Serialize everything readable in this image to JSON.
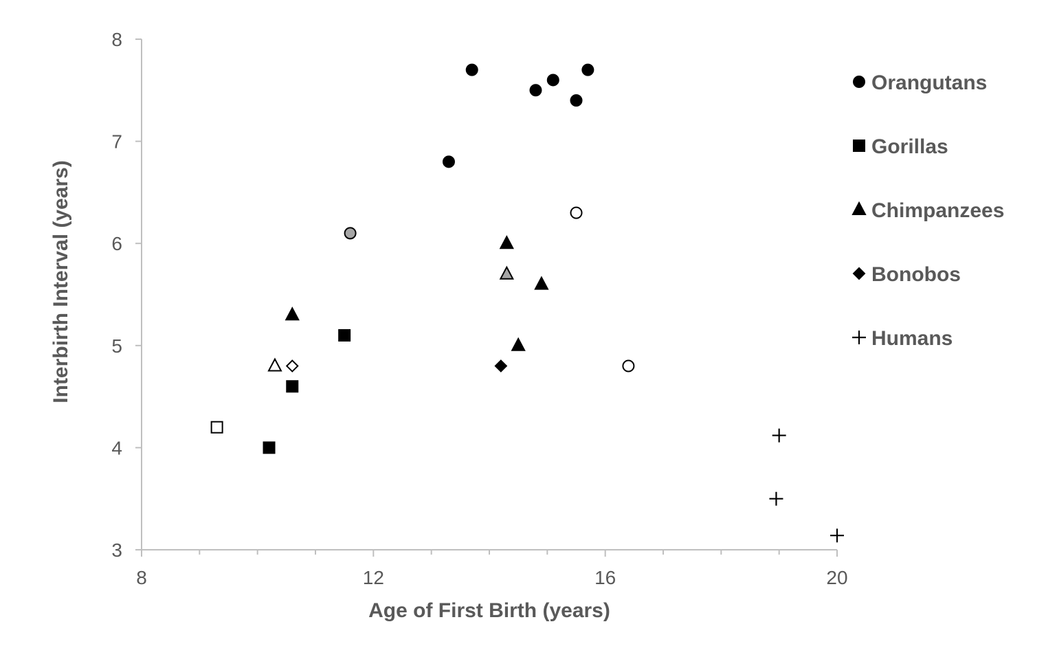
{
  "chart_data": {
    "type": "scatter",
    "title": "",
    "xlabel": "Age of First Birth (years)",
    "ylabel": "Interbirth Interval (years)",
    "xlim": [
      8,
      20
    ],
    "ylim": [
      3,
      8
    ],
    "xticks": [
      8,
      12,
      16,
      20
    ],
    "xminor_step": 1,
    "yticks": [
      3,
      4,
      5,
      6,
      7,
      8
    ],
    "grid": false,
    "legend_position": "right",
    "series": [
      {
        "name": "Orangutans",
        "marker": "circle",
        "points": [
          {
            "x": 13.7,
            "y": 7.7,
            "fill": "#000000"
          },
          {
            "x": 14.8,
            "y": 7.5,
            "fill": "#000000"
          },
          {
            "x": 15.1,
            "y": 7.6,
            "fill": "#000000"
          },
          {
            "x": 15.5,
            "y": 7.4,
            "fill": "#000000"
          },
          {
            "x": 15.7,
            "y": 7.7,
            "fill": "#000000"
          },
          {
            "x": 13.3,
            "y": 6.8,
            "fill": "#000000"
          },
          {
            "x": 11.6,
            "y": 6.1,
            "fill": "#a6a6a6"
          },
          {
            "x": 15.5,
            "y": 6.3,
            "fill": "#ffffff"
          },
          {
            "x": 16.4,
            "y": 4.8,
            "fill": "#ffffff"
          }
        ]
      },
      {
        "name": "Gorillas",
        "marker": "square",
        "points": [
          {
            "x": 11.5,
            "y": 5.1,
            "fill": "#000000"
          },
          {
            "x": 10.6,
            "y": 4.6,
            "fill": "#000000"
          },
          {
            "x": 10.2,
            "y": 4.0,
            "fill": "#000000"
          },
          {
            "x": 9.3,
            "y": 4.2,
            "fill": "#ffffff"
          }
        ]
      },
      {
        "name": "Chimpanzees",
        "marker": "triangle",
        "points": [
          {
            "x": 14.3,
            "y": 6.0,
            "fill": "#000000"
          },
          {
            "x": 14.3,
            "y": 5.7,
            "fill": "#a6a6a6"
          },
          {
            "x": 14.9,
            "y": 5.6,
            "fill": "#000000"
          },
          {
            "x": 14.5,
            "y": 5.0,
            "fill": "#000000"
          },
          {
            "x": 10.6,
            "y": 5.3,
            "fill": "#000000"
          },
          {
            "x": 10.3,
            "y": 4.8,
            "fill": "#ffffff"
          }
        ]
      },
      {
        "name": "Bonobos",
        "marker": "diamond",
        "points": [
          {
            "x": 14.2,
            "y": 4.8,
            "fill": "#000000"
          },
          {
            "x": 10.6,
            "y": 4.8,
            "fill": "#ffffff"
          }
        ]
      },
      {
        "name": "Humans",
        "marker": "plus",
        "points": [
          {
            "x": 19.0,
            "y": 4.12,
            "fill": "#000000"
          },
          {
            "x": 18.95,
            "y": 3.5,
            "fill": "#000000"
          },
          {
            "x": 20.0,
            "y": 3.14,
            "fill": "#000000"
          }
        ]
      }
    ]
  },
  "colors": {
    "axis": "#bfbfbf",
    "text": "#595959",
    "marker_stroke": "#000000"
  }
}
